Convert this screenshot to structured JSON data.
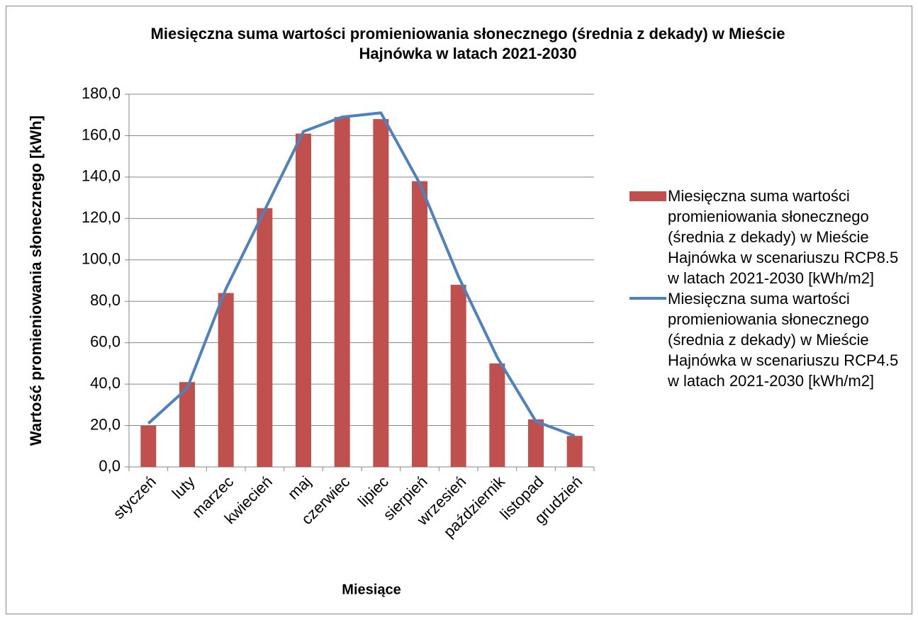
{
  "chart_data": {
    "type": "bar",
    "title": "Miesięczna suma wartości promieniowania słonecznego (średnia z dekady) w Mieście Hajnówka w latach 2021-2030",
    "x_label": "Miesiące",
    "y_label": "Wartość promieniowania słonecznego [kWh]",
    "categories": [
      "styczeń",
      "luty",
      "marzec",
      "kwiecień",
      "maj",
      "czerwiec",
      "lipiec",
      "sierpień",
      "wrzesień",
      "październik",
      "listopad",
      "grudzień"
    ],
    "series": [
      {
        "name": "Miesięczna suma wartości promieniowania słonecznego (średnia z dekady) w Mieście Hajnówka w scenariuszu RCP8.5 w latach 2021-2030 [kWh/m2]",
        "type": "bar",
        "color": "#c0504d",
        "values": [
          20,
          41,
          84,
          125,
          161,
          169,
          168,
          138,
          88,
          50,
          23,
          15
        ]
      },
      {
        "name": "Miesięczna suma wartości promieniowania słonecznego (średnia z dekady) w Mieście Hajnówka w scenariuszu RCP4.5 w latach 2021-2030 [kWh/m2]",
        "type": "line",
        "color": "#4f81bd",
        "values": [
          21,
          38,
          86,
          124,
          162,
          169,
          171,
          137,
          92,
          53,
          22,
          15
        ]
      }
    ],
    "ylim": [
      0,
      180
    ],
    "yticks": [
      {
        "value": 0,
        "label": "0,0"
      },
      {
        "value": 20,
        "label": "20,0"
      },
      {
        "value": 40,
        "label": "40,0"
      },
      {
        "value": 60,
        "label": "60,0"
      },
      {
        "value": 80,
        "label": "80,0"
      },
      {
        "value": 100,
        "label": "100,0"
      },
      {
        "value": 120,
        "label": "120,0"
      },
      {
        "value": 140,
        "label": "140,0"
      },
      {
        "value": 160,
        "label": "160,0"
      },
      {
        "value": 180,
        "label": "180,0"
      }
    ],
    "grid": true,
    "legend": "right"
  }
}
